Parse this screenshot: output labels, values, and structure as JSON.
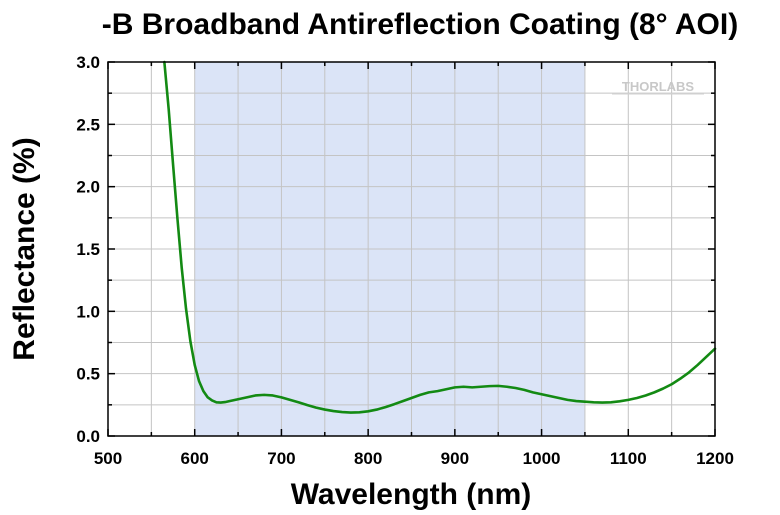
{
  "chart_data": {
    "type": "line",
    "title": "-B Broadband Antireflection Coating (8° AOI)",
    "xlabel": "Wavelength (nm)",
    "ylabel": "Reflectance (%)",
    "xlim": [
      500,
      1200
    ],
    "ylim": [
      0,
      3.0
    ],
    "xticks": [
      500,
      600,
      700,
      800,
      900,
      1000,
      1100,
      1200
    ],
    "xtick_labels": [
      "500",
      "600",
      "700",
      "800",
      "900",
      "1000",
      "1100",
      "1200"
    ],
    "yticks": [
      0,
      0.5,
      1.0,
      1.5,
      2.0,
      2.5,
      3.0
    ],
    "ytick_labels": [
      "0.0",
      "0.5",
      "1.0",
      "1.5",
      "2.0",
      "2.5",
      "3.0"
    ],
    "grid": true,
    "highlight_band": [
      600,
      1050
    ],
    "series": [
      {
        "color": "#138a13",
        "x": [
          565,
          570,
          575,
          580,
          585,
          590,
          595,
          600,
          605,
          610,
          615,
          620,
          625,
          630,
          635,
          640,
          650,
          660,
          670,
          680,
          690,
          700,
          710,
          720,
          730,
          740,
          750,
          760,
          770,
          780,
          790,
          800,
          810,
          820,
          830,
          840,
          850,
          860,
          870,
          880,
          890,
          900,
          910,
          920,
          930,
          940,
          950,
          960,
          970,
          980,
          990,
          1000,
          1010,
          1020,
          1030,
          1040,
          1050,
          1060,
          1070,
          1080,
          1090,
          1100,
          1110,
          1120,
          1130,
          1140,
          1150,
          1160,
          1170,
          1180,
          1190,
          1200
        ],
        "y": [
          3.0,
          2.62,
          2.18,
          1.75,
          1.35,
          1.02,
          0.76,
          0.57,
          0.44,
          0.36,
          0.31,
          0.285,
          0.27,
          0.268,
          0.272,
          0.28,
          0.295,
          0.31,
          0.325,
          0.33,
          0.325,
          0.31,
          0.29,
          0.27,
          0.248,
          0.228,
          0.212,
          0.2,
          0.192,
          0.188,
          0.19,
          0.198,
          0.212,
          0.232,
          0.255,
          0.28,
          0.305,
          0.33,
          0.35,
          0.36,
          0.375,
          0.39,
          0.395,
          0.39,
          0.395,
          0.4,
          0.402,
          0.395,
          0.385,
          0.37,
          0.35,
          0.335,
          0.32,
          0.305,
          0.29,
          0.28,
          0.275,
          0.27,
          0.268,
          0.27,
          0.278,
          0.29,
          0.305,
          0.325,
          0.35,
          0.38,
          0.415,
          0.46,
          0.51,
          0.57,
          0.635,
          0.7
        ]
      }
    ]
  },
  "logo": {
    "text": "THORLABS"
  }
}
